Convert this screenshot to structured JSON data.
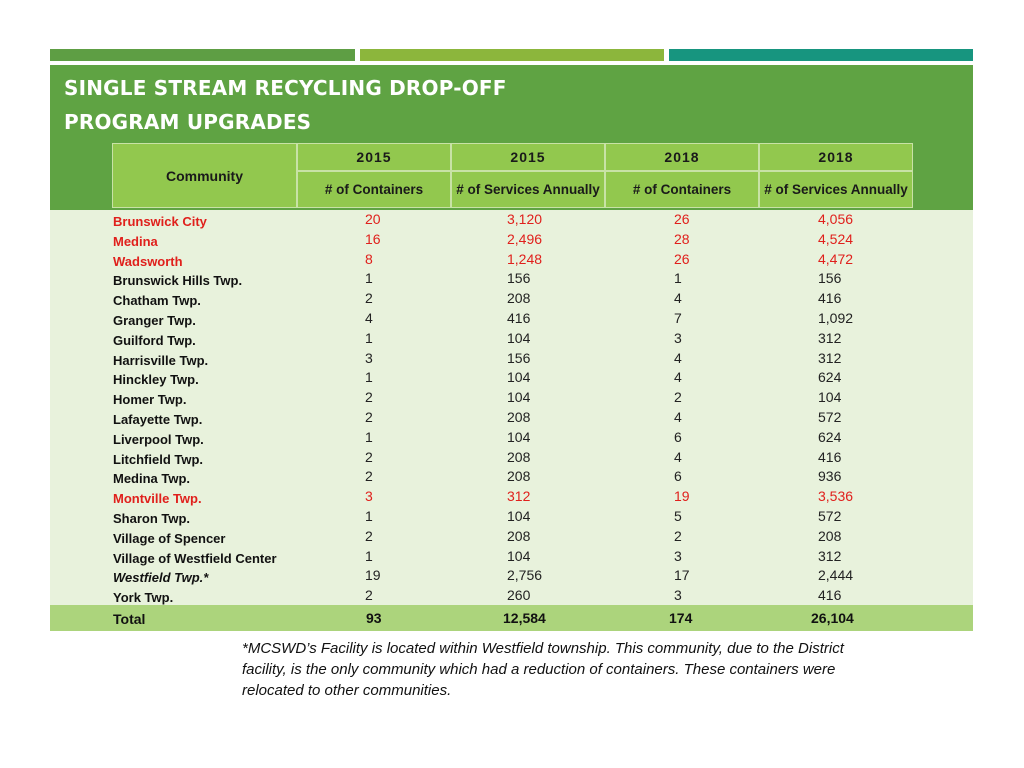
{
  "title": {
    "line1": "SINGLE STREAM RECYCLING DROP-OFF",
    "line2": "PROGRAM UPGRADES"
  },
  "header": {
    "community": "Community",
    "years": [
      "2015",
      "2015",
      "2018",
      "2018"
    ],
    "subheaders": [
      "# of Containers",
      "# of Services Annually",
      "# of Containers",
      "# of Services Annually"
    ]
  },
  "colors": {
    "band": "#5fa343",
    "header": "#92c84e",
    "body": "#e8f2dc",
    "total": "#acd47c",
    "highlight_text": "#e0201c"
  },
  "rows": [
    {
      "community": "Brunswick City",
      "c2015": "20",
      "s2015": "3,120",
      "c2018": "26",
      "s2018": "4,056",
      "highlight": true
    },
    {
      "community": "Medina",
      "c2015": "16",
      "s2015": "2,496",
      "c2018": "28",
      "s2018": "4,524",
      "highlight": true
    },
    {
      "community": "Wadsworth",
      "c2015": "8",
      "s2015": "1,248",
      "c2018": "26",
      "s2018": "4,472",
      "highlight": true
    },
    {
      "community": "Brunswick Hills Twp.",
      "c2015": "1",
      "s2015": "156",
      "c2018": "1",
      "s2018": "156"
    },
    {
      "community": "Chatham Twp.",
      "c2015": "2",
      "s2015": "208",
      "c2018": "4",
      "s2018": "416"
    },
    {
      "community": "Granger Twp.",
      "c2015": "4",
      "s2015": "416",
      "c2018": "7",
      "s2018": "1,092"
    },
    {
      "community": "Guilford Twp.",
      "c2015": "1",
      "s2015": "104",
      "c2018": "3",
      "s2018": "312"
    },
    {
      "community": "Harrisville Twp.",
      "c2015": "3",
      "s2015": "156",
      "c2018": "4",
      "s2018": "312"
    },
    {
      "community": "Hinckley Twp.",
      "c2015": "1",
      "s2015": "104",
      "c2018": "4",
      "s2018": "624"
    },
    {
      "community": "Homer Twp.",
      "c2015": "2",
      "s2015": "104",
      "c2018": "2",
      "s2018": "104"
    },
    {
      "community": "Lafayette Twp.",
      "c2015": "2",
      "s2015": "208",
      "c2018": "4",
      "s2018": "572"
    },
    {
      "community": "Liverpool Twp.",
      "c2015": "1",
      "s2015": "104",
      "c2018": "6",
      "s2018": "624"
    },
    {
      "community": "Litchfield Twp.",
      "c2015": "2",
      "s2015": "208",
      "c2018": "4",
      "s2018": "416"
    },
    {
      "community": "Medina Twp.",
      "c2015": "2",
      "s2015": "208",
      "c2018": "6",
      "s2018": "936"
    },
    {
      "community": "Montville Twp.",
      "c2015": "3",
      "s2015": "312",
      "c2018": "19",
      "s2018": "3,536",
      "highlight": true
    },
    {
      "community": "Sharon Twp.",
      "c2015": "1",
      "s2015": "104",
      "c2018": "5",
      "s2018": "572"
    },
    {
      "community": "Village of Spencer",
      "c2015": "2",
      "s2015": "208",
      "c2018": "2",
      "s2018": "208"
    },
    {
      "community": "Village of Westfield Center",
      "c2015": "1",
      "s2015": "104",
      "c2018": "3",
      "s2018": "312"
    },
    {
      "community": "Westfield Twp.*",
      "c2015": "19",
      "s2015": "2,756",
      "c2018": "17",
      "s2018": "2,444",
      "italic": true
    },
    {
      "community": "York Twp.",
      "c2015": "2",
      "s2015": "260",
      "c2018": "3",
      "s2018": "416"
    }
  ],
  "total": {
    "community": "Total",
    "c2015": "93",
    "s2015": "12,584",
    "c2018": "174",
    "s2018": "26,104"
  },
  "footnote": "*MCSWD’s Facility is located within Westfield township. This community, due to the District facility, is the only community which had a reduction of containers. These containers were relocated to other communities."
}
